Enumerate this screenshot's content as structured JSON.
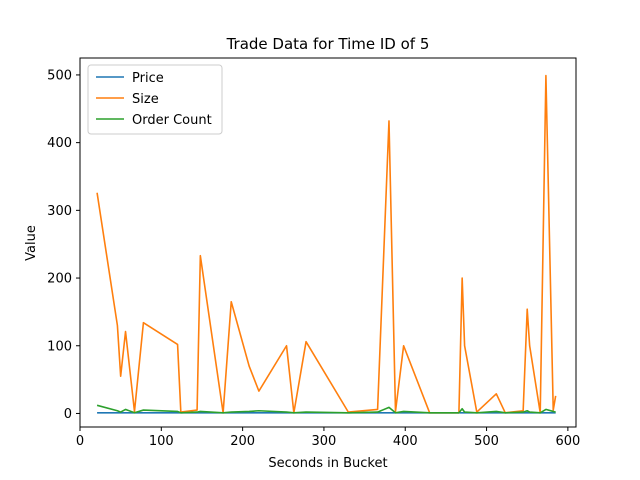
{
  "chart_data": {
    "type": "line",
    "title": "Trade Data for Time ID of 5",
    "xlabel": "Seconds in Bucket",
    "ylabel": "Value",
    "xlim": [
      0,
      610
    ],
    "ylim": [
      -20,
      525
    ],
    "xticks": [
      0,
      100,
      200,
      300,
      400,
      500,
      600
    ],
    "yticks": [
      0,
      100,
      200,
      300,
      400,
      500
    ],
    "legend_position": "top-left",
    "series": [
      {
        "name": "Price",
        "color": "#1f77b4",
        "x": [
          21,
          46,
          50,
          56,
          67,
          78,
          120,
          124,
          144,
          148,
          176,
          186,
          208,
          220,
          254,
          263,
          278,
          330,
          366,
          380,
          388,
          398,
          430,
          466,
          470,
          473,
          488,
          512,
          523,
          545,
          550,
          553,
          566,
          573,
          582,
          585
        ],
        "y": [
          1,
          1,
          1,
          1,
          1,
          1,
          1,
          1,
          1,
          1,
          1,
          1,
          1,
          1,
          1,
          1,
          1,
          1,
          1,
          1,
          1,
          1,
          1,
          1,
          1,
          1,
          1,
          1,
          1,
          1,
          1,
          1,
          1,
          1,
          1,
          1
        ]
      },
      {
        "name": "Size",
        "color": "#ff7f0e",
        "x": [
          21,
          46,
          50,
          56,
          67,
          78,
          120,
          124,
          144,
          148,
          176,
          186,
          208,
          220,
          254,
          263,
          278,
          330,
          366,
          380,
          388,
          398,
          430,
          466,
          470,
          473,
          488,
          512,
          523,
          545,
          550,
          553,
          566,
          573,
          582,
          585
        ],
        "y": [
          326,
          130,
          55,
          121,
          3,
          134,
          102,
          2,
          5,
          233,
          1,
          165,
          70,
          33,
          100,
          1,
          106,
          2,
          6,
          432,
          3,
          100,
          1,
          1,
          200,
          100,
          2,
          29,
          1,
          4,
          154,
          100,
          1,
          499,
          5,
          26
        ]
      },
      {
        "name": "Order Count",
        "color": "#2ca02c",
        "x": [
          21,
          46,
          50,
          56,
          67,
          78,
          120,
          124,
          144,
          148,
          176,
          186,
          208,
          220,
          254,
          263,
          278,
          330,
          366,
          380,
          388,
          398,
          430,
          466,
          470,
          473,
          488,
          512,
          523,
          545,
          550,
          553,
          566,
          573,
          582,
          585
        ],
        "y": [
          12,
          4,
          2,
          6,
          1,
          5,
          3,
          1,
          2,
          3,
          1,
          2,
          3,
          4,
          2,
          1,
          2,
          1,
          2,
          9,
          1,
          3,
          1,
          1,
          7,
          2,
          1,
          3,
          1,
          2,
          4,
          2,
          1,
          6,
          3,
          2
        ]
      }
    ]
  }
}
